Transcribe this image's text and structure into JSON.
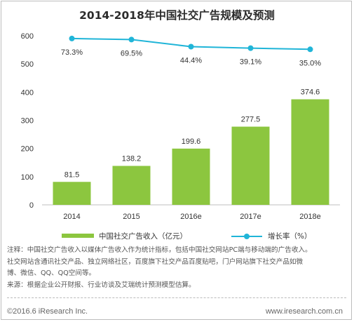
{
  "title": "2014-2018年中国社交广告规模及预测",
  "legend": {
    "bar_label": "中国社交广告收入（亿元）",
    "line_label": "增长率（%）"
  },
  "colors": {
    "bar": "#8cc63f",
    "line": "#20b5d8"
  },
  "notes": [
    "注释：中国社交广告收入以媒体广告收入作为统计指标，包括中国社交网站PC端与移动端的广告收入。",
    "社交网站含通讯社交产品、独立网络社区，百度旗下社交产品百度贴吧，门户网站旗下社交产品如微",
    "博、微信、QQ、QQ空间等。",
    "来源：根据企业公开财报、行业访谈及艾瑞统计预测模型估算。"
  ],
  "footer": {
    "copyright": "©2016.6 iResearch Inc.",
    "website": "www.iresearch.com.cn"
  },
  "chart_data": {
    "type": "bar",
    "title": "2014-2018年中国社交广告规模及预测",
    "categories": [
      "2014",
      "2015",
      "2016e",
      "2017e",
      "2018e"
    ],
    "ylim": [
      0,
      600
    ],
    "yticks": [
      0,
      100,
      200,
      300,
      400,
      500,
      600
    ],
    "grid": false,
    "series": [
      {
        "name": "中国社交广告收入（亿元）",
        "type": "bar",
        "values": [
          81.5,
          138.2,
          199.6,
          277.5,
          374.6
        ],
        "labels": [
          "81.5",
          "138.2",
          "199.6",
          "277.5",
          "374.6"
        ]
      },
      {
        "name": "增长率（%）",
        "type": "line",
        "values": [
          73.3,
          69.5,
          44.4,
          39.1,
          35.0
        ],
        "labels": [
          "73.3%",
          "69.5%",
          "44.4%",
          "39.1%",
          "35.0%"
        ]
      }
    ]
  }
}
